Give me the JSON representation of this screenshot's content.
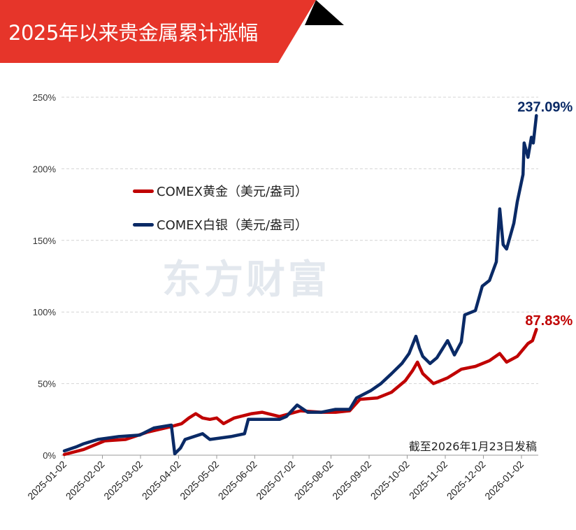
{
  "header": {
    "title": "2025年以来贵金属累计涨幅"
  },
  "watermark": "东方财富",
  "note": "截至2026年1月23日发稿",
  "colors": {
    "banner": "#e6352a",
    "gold": "#c00000",
    "silver": "#0a2a66"
  },
  "chart_data": {
    "type": "line",
    "title": "2025年以来贵金属累计涨幅",
    "x_unit": "months since 2025-01-02",
    "ylim": [
      0,
      250
    ],
    "yticks": [
      0,
      50,
      100,
      150,
      200,
      250
    ],
    "ytick_labels": [
      "0%",
      "50%",
      "100%",
      "150%",
      "200%",
      "250%"
    ],
    "xtick_labels": [
      "2025-01-02",
      "2025-02-02",
      "2025-03-02",
      "2025-04-02",
      "2025-05-02",
      "2025-06-02",
      "2025-07-02",
      "2025-08-02",
      "2025-09-02",
      "2025-10-02",
      "2025-11-02",
      "2025-12-02",
      "2026-01-02"
    ],
    "grid": true,
    "legend_position": "upper-left",
    "series": [
      {
        "name": "COMEX黄金（美元/盎司）",
        "color": "#c00000",
        "end_label": "87.83%",
        "points": [
          [
            0,
            0.5
          ],
          [
            0.51,
            4
          ],
          [
            1.06,
            10
          ],
          [
            1.61,
            11
          ],
          [
            2.17,
            16
          ],
          [
            2.81,
            20
          ],
          [
            3.08,
            22
          ],
          [
            3.27,
            26
          ],
          [
            3.45,
            29
          ],
          [
            3.63,
            26
          ],
          [
            3.82,
            25
          ],
          [
            4.0,
            26
          ],
          [
            4.18,
            22
          ],
          [
            4.46,
            26
          ],
          [
            4.92,
            29
          ],
          [
            5.19,
            30
          ],
          [
            5.65,
            27
          ],
          [
            6.2,
            31
          ],
          [
            6.75,
            30
          ],
          [
            7.12,
            30
          ],
          [
            7.49,
            31
          ],
          [
            7.76,
            39
          ],
          [
            8.22,
            40
          ],
          [
            8.59,
            44
          ],
          [
            8.95,
            52
          ],
          [
            9.14,
            59
          ],
          [
            9.27,
            65
          ],
          [
            9.41,
            57
          ],
          [
            9.69,
            50
          ],
          [
            10.06,
            54
          ],
          [
            10.24,
            57
          ],
          [
            10.42,
            60
          ],
          [
            10.79,
            62
          ],
          [
            11.16,
            66
          ],
          [
            11.43,
            71
          ],
          [
            11.61,
            65
          ],
          [
            11.89,
            69
          ],
          [
            12.17,
            78
          ],
          [
            12.29,
            80
          ],
          [
            12.39,
            87.83
          ]
        ]
      },
      {
        "name": "COMEX白银（美元/盎司）",
        "color": "#0a2a66",
        "end_label": "237.09%",
        "points": [
          [
            0,
            3
          ],
          [
            0.33,
            6
          ],
          [
            0.51,
            8
          ],
          [
            0.88,
            11
          ],
          [
            1.43,
            13
          ],
          [
            1.98,
            14
          ],
          [
            2.35,
            19
          ],
          [
            2.81,
            21
          ],
          [
            2.9,
            1
          ],
          [
            3.05,
            5
          ],
          [
            3.17,
            11
          ],
          [
            3.63,
            15
          ],
          [
            3.82,
            11
          ],
          [
            4.37,
            13
          ],
          [
            4.73,
            15
          ],
          [
            4.83,
            25
          ],
          [
            5.19,
            25
          ],
          [
            5.65,
            25
          ],
          [
            5.83,
            27
          ],
          [
            6.11,
            35
          ],
          [
            6.39,
            30
          ],
          [
            6.75,
            30
          ],
          [
            7.12,
            32
          ],
          [
            7.49,
            32
          ],
          [
            7.67,
            40
          ],
          [
            8.04,
            45
          ],
          [
            8.31,
            50
          ],
          [
            8.59,
            57
          ],
          [
            8.86,
            64
          ],
          [
            9.05,
            71
          ],
          [
            9.23,
            83
          ],
          [
            9.32,
            75
          ],
          [
            9.41,
            69
          ],
          [
            9.6,
            64
          ],
          [
            9.78,
            68
          ],
          [
            10.06,
            80
          ],
          [
            10.24,
            70
          ],
          [
            10.42,
            79
          ],
          [
            10.51,
            98
          ],
          [
            10.79,
            101
          ],
          [
            10.97,
            118
          ],
          [
            11.16,
            122
          ],
          [
            11.34,
            135
          ],
          [
            11.43,
            172
          ],
          [
            11.52,
            147
          ],
          [
            11.61,
            144
          ],
          [
            11.8,
            162
          ],
          [
            11.89,
            177
          ],
          [
            12.04,
            196
          ],
          [
            12.07,
            218
          ],
          [
            12.17,
            208
          ],
          [
            12.26,
            222
          ],
          [
            12.31,
            218
          ],
          [
            12.39,
            237.09
          ]
        ]
      }
    ]
  }
}
